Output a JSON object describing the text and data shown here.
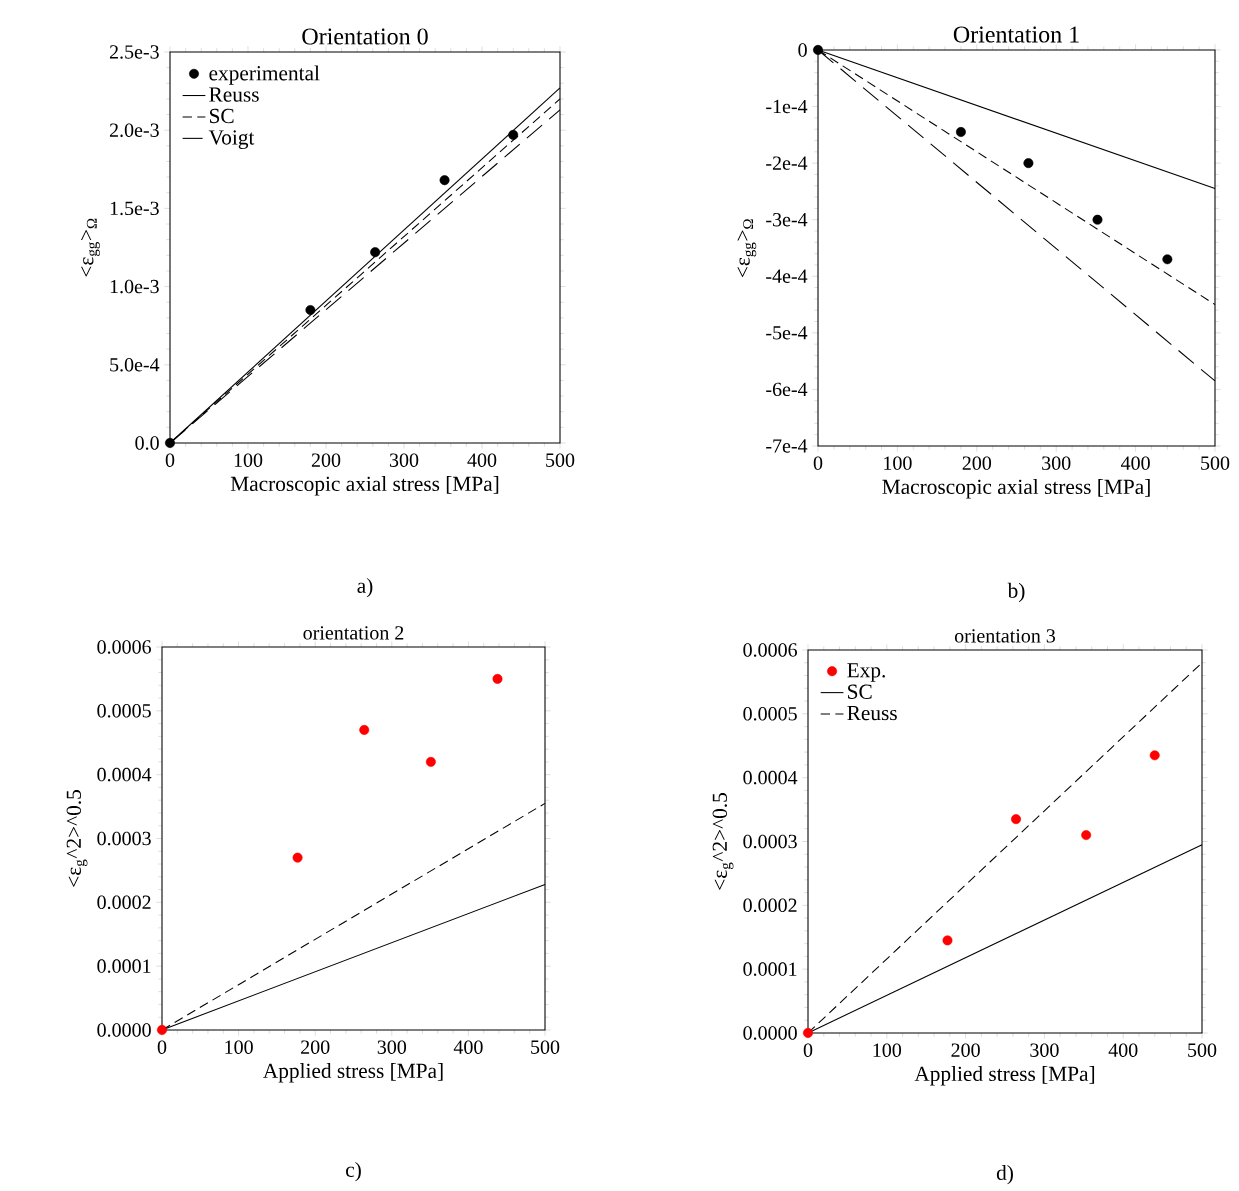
{
  "chart_data": [
    {
      "type": "line",
      "title": "Orientation 0",
      "xlabel": "Macroscopic axial stress [MPa]",
      "ylabel": "<ε$_{gg}$>$_{Ω}$",
      "xlim": [
        0,
        500
      ],
      "ylim": [
        0,
        0.0025
      ],
      "xticks": [
        0,
        100,
        200,
        300,
        400,
        500
      ],
      "yticks": [
        {
          "value": 0,
          "label": "0.0"
        },
        {
          "value": 0.0005,
          "label": "5.0e-4"
        },
        {
          "value": 0.001,
          "label": "1.0e-3"
        },
        {
          "value": 0.0015,
          "label": "1.5e-3"
        },
        {
          "value": 0.002,
          "label": "2.0e-3"
        },
        {
          "value": 0.0025,
          "label": "2.5e-3"
        }
      ],
      "legend": "top left",
      "annotations": [
        "a)"
      ],
      "series": [
        {
          "name": "experimental",
          "type": "scatter",
          "color": "#000000",
          "x": [
            0,
            180,
            263,
            352,
            440
          ],
          "values": [
            0,
            0.00085,
            0.00122,
            0.00168,
            0.00197
          ]
        },
        {
          "name": "Reuss",
          "line_style": "solid",
          "color": "#000000",
          "x": [
            0,
            500
          ],
          "values": [
            0,
            0.00227
          ]
        },
        {
          "name": "SC",
          "line_style": "dashed",
          "color": "#000000",
          "x": [
            0,
            500
          ],
          "values": [
            0,
            0.0022
          ]
        },
        {
          "name": "Voigt",
          "line_style": "loosely dashed",
          "color": "#000000",
          "x": [
            0,
            500
          ],
          "values": [
            0,
            0.00213
          ]
        }
      ]
    },
    {
      "type": "line",
      "title": "Orientation 1",
      "xlabel": "Macroscopic axial stress [MPa]",
      "ylabel": "<ε$_{gg}$>$_{Ω}$",
      "xlim": [
        0,
        500
      ],
      "ylim": [
        -0.0007,
        0
      ],
      "xticks": [
        0,
        100,
        200,
        300,
        400,
        500
      ],
      "yticks": [
        {
          "value": -0.0007,
          "label": "-7e-4"
        },
        {
          "value": -0.0006,
          "label": "-6e-4"
        },
        {
          "value": -0.0005,
          "label": "-5e-4"
        },
        {
          "value": -0.0004,
          "label": "-4e-4"
        },
        {
          "value": -0.0003,
          "label": "-3e-4"
        },
        {
          "value": -0.0002,
          "label": "-2e-4"
        },
        {
          "value": -0.0001,
          "label": "-1e-4"
        },
        {
          "value": 0,
          "label": "0"
        }
      ],
      "annotations": [
        "b)"
      ],
      "series": [
        {
          "type": "scatter",
          "color": "#000000",
          "x": [
            0,
            180,
            265,
            352,
            440
          ],
          "values": [
            0,
            -0.000145,
            -0.0002,
            -0.0003,
            -0.00037
          ]
        },
        {
          "line_style": "solid",
          "color": "#000000",
          "x": [
            0,
            500
          ],
          "values": [
            0,
            -0.000245
          ]
        },
        {
          "line_style": "dashed",
          "color": "#000000",
          "x": [
            0,
            500
          ],
          "values": [
            0,
            -0.00045
          ]
        },
        {
          "line_style": "loosely dashed",
          "color": "#000000",
          "x": [
            0,
            500
          ],
          "values": [
            0,
            -0.000585
          ]
        }
      ]
    },
    {
      "type": "line",
      "title": "orientation 2",
      "xlabel": "Applied stress [MPa]",
      "ylabel": "<ε$_{g}$^2>^0.5",
      "xlim": [
        0,
        500
      ],
      "ylim": [
        0,
        0.0006
      ],
      "xticks": [
        0,
        100,
        200,
        300,
        400,
        500
      ],
      "yticks": [
        {
          "value": 0,
          "label": "0.0000"
        },
        {
          "value": 0.0001,
          "label": "0.0001"
        },
        {
          "value": 0.0002,
          "label": "0.0002"
        },
        {
          "value": 0.0003,
          "label": "0.0003"
        },
        {
          "value": 0.0004,
          "label": "0.0004"
        },
        {
          "value": 0.0005,
          "label": "0.0005"
        },
        {
          "value": 0.0006,
          "label": "0.0006"
        }
      ],
      "annotations": [
        "c)"
      ],
      "series": [
        {
          "type": "scatter",
          "color": "#ff0000",
          "x": [
            0,
            177,
            264,
            351,
            438
          ],
          "values": [
            0,
            0.00027,
            0.00047,
            0.00042,
            0.00055
          ]
        },
        {
          "line_style": "solid",
          "color": "#000000",
          "x": [
            0,
            500
          ],
          "values": [
            0,
            0.000228
          ]
        },
        {
          "line_style": "dashed",
          "color": "#000000",
          "x": [
            0,
            500
          ],
          "values": [
            0,
            0.000355
          ]
        }
      ]
    },
    {
      "type": "line",
      "title": "orientation 3",
      "xlabel": "Applied stress [MPa]",
      "ylabel": "<ε$_{g}$^2>^0.5",
      "xlim": [
        0,
        500
      ],
      "ylim": [
        0,
        0.0006
      ],
      "xticks": [
        0,
        100,
        200,
        300,
        400,
        500
      ],
      "yticks": [
        {
          "value": 0,
          "label": "0.0000"
        },
        {
          "value": 0.0001,
          "label": "0.0001"
        },
        {
          "value": 0.0002,
          "label": "0.0002"
        },
        {
          "value": 0.0003,
          "label": "0.0003"
        },
        {
          "value": 0.0004,
          "label": "0.0004"
        },
        {
          "value": 0.0005,
          "label": "0.0005"
        },
        {
          "value": 0.0006,
          "label": "0.0006"
        }
      ],
      "legend": "top left",
      "annotations": [
        "d)"
      ],
      "series": [
        {
          "name": "Exp.",
          "type": "scatter",
          "color": "#ff0000",
          "x": [
            0,
            177,
            264,
            353,
            440
          ],
          "values": [
            0,
            0.000145,
            0.000335,
            0.00031,
            0.000435
          ]
        },
        {
          "name": "SC",
          "line_style": "solid",
          "color": "#000000",
          "x": [
            0,
            500
          ],
          "values": [
            0,
            0.000295
          ]
        },
        {
          "name": "Reuss",
          "line_style": "dashed",
          "color": "#000000",
          "x": [
            0,
            500
          ],
          "values": [
            0,
            0.00058
          ]
        }
      ]
    }
  ]
}
